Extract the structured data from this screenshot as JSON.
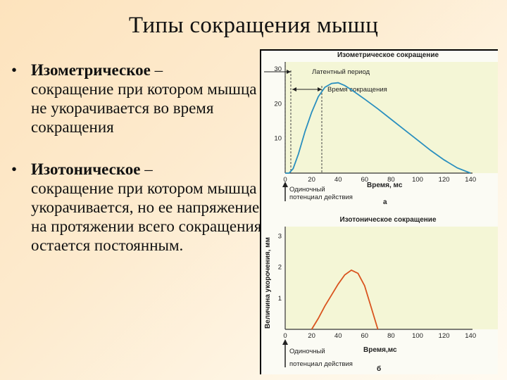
{
  "slide": {
    "title": "Типы сокращения мышц",
    "bullets": [
      {
        "marker": "•",
        "term": "Изометрическое",
        "dash": " –",
        "text": "сокращение при котором мышца не укорачивается во время сокращения"
      },
      {
        "marker": "•",
        "term": "Изотоническое",
        "dash": " –",
        "text": "сокращение при котором мышца укорачивается, но ее напряжение на протяжении всего сокращения остается постоянным."
      }
    ]
  },
  "figure": {
    "top": {
      "title": "Изометрическое сокращение",
      "latent_label": "Латентный период",
      "contraction_label": "Время сокращения",
      "y_ticks": [
        "10",
        "20",
        "30"
      ],
      "x_ticks": [
        "0",
        "20",
        "40",
        "60",
        "80",
        "100",
        "120",
        "140"
      ],
      "xlabel": "Время, мс",
      "stimulus_label_1": "Одиночный",
      "stimulus_label_2": "потенциал действия",
      "panel_letter": "а"
    },
    "bottom": {
      "title": "Изотоническое сокращение",
      "ylabel": "Величина укорочения, мм",
      "y_ticks": [
        "1",
        "2",
        "3"
      ],
      "x_ticks": [
        "0",
        "20",
        "40",
        "60",
        "80",
        "100",
        "120",
        "140"
      ],
      "xlabel": "Время,мс",
      "stimulus_label_1": "Одиночный",
      "stimulus_label_2": "потенциал действия",
      "panel_letter": "б"
    },
    "colors": {
      "isometric_curve": "#2a8fbf",
      "isotonic_curve": "#d9541f",
      "panel_bg": "#f4f6d6"
    }
  },
  "chart_data": [
    {
      "type": "line",
      "title": "Изометрическое сокращение",
      "xlabel": "Время, мс",
      "ylabel": "",
      "xlim": [
        0,
        150
      ],
      "ylim": [
        0,
        32
      ],
      "x": [
        0,
        3,
        6,
        10,
        15,
        20,
        25,
        30,
        35,
        40,
        45,
        50,
        60,
        70,
        80,
        90,
        100,
        110,
        120,
        130,
        140
      ],
      "series": [
        {
          "values": [
            0,
            0,
            1.3,
            5.5,
            12,
            17.5,
            22,
            24.7,
            25.8,
            26,
            25.2,
            24,
            21.3,
            18.5,
            15.5,
            12.5,
            9.5,
            6.5,
            3.8,
            1.5,
            0
          ]
        }
      ],
      "annotations": [
        {
          "label": "Латентный период",
          "x": [
            0,
            6
          ]
        },
        {
          "label": "Время сокращения",
          "x": [
            6,
            38
          ]
        }
      ]
    },
    {
      "type": "line",
      "title": "Изотоническое сокращение",
      "xlabel": "Время,мс",
      "ylabel": "Величина укорочения, мм",
      "xlim": [
        0,
        150
      ],
      "ylim": [
        0,
        3.3
      ],
      "x": [
        20,
        25,
        30,
        35,
        40,
        45,
        50,
        55,
        60,
        65,
        70
      ],
      "series": [
        {
          "values": [
            0,
            0.35,
            0.75,
            1.1,
            1.45,
            1.75,
            1.9,
            1.8,
            1.4,
            0.7,
            0
          ]
        }
      ]
    }
  ]
}
